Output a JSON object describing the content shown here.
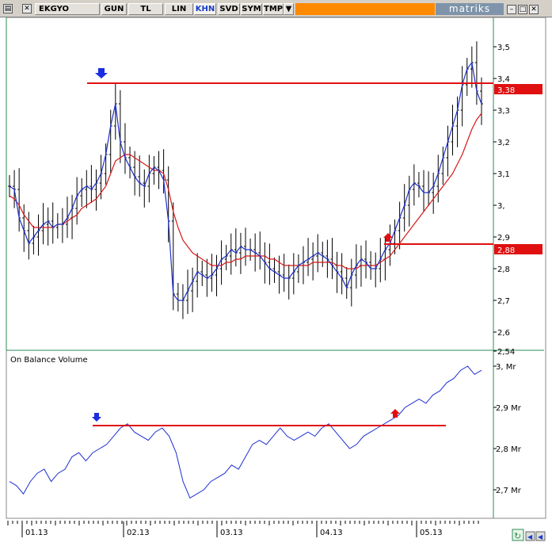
{
  "toolbar": {
    "symbol": "EKGYO",
    "buttons": [
      "GUN",
      "TL",
      "LIN",
      "KHN",
      "SVD",
      "SYM",
      "TMP"
    ],
    "active": "KHN",
    "logo": "matriks"
  },
  "colors": {
    "accent_orange": "#ff8a00",
    "resistance_line": "#e01010",
    "ma_fast": "#1c2fd0",
    "ma_slow": "#d81818",
    "grid": "#2e8b57"
  },
  "price_panel": {
    "y_ticks": [
      "3,5",
      "3,4",
      "3,3",
      "3,2",
      "3,1",
      "3,",
      "2,9",
      "2,8",
      "2,7",
      "2,6",
      "2,54"
    ],
    "level_high_label": "3,38",
    "level_low_label": "2,88"
  },
  "obv_panel": {
    "title": "On Balance Volume",
    "y_ticks": [
      "3, Mr",
      "2,9 Mr",
      "2,8 Mr",
      "2,7 Mr"
    ]
  },
  "x_axis": {
    "labels": [
      "01.13",
      "02.13",
      "03.13",
      "04.13",
      "05.13"
    ]
  },
  "chart_data": [
    {
      "type": "line",
      "title": "",
      "series_name": "EKGYO",
      "ylim": [
        2.54,
        3.58
      ],
      "support_resistance": [
        3.38,
        2.88
      ],
      "markers": [
        {
          "type": "down-arrow",
          "x_index": 28,
          "color": "blue"
        },
        {
          "type": "up-arrow",
          "x_index": 120,
          "color": "red"
        }
      ],
      "series": [
        {
          "name": "",
          "values": [
            3.06,
            3.05,
            2.96,
            2.92,
            2.88,
            2.9,
            2.92,
            2.94,
            2.95,
            2.93,
            2.94,
            2.94,
            2.96,
            2.99,
            3.03,
            3.05,
            3.06,
            3.05,
            3.07,
            3.1,
            3.16,
            3.25,
            3.32,
            3.2,
            3.15,
            3.12,
            3.09,
            3.07,
            3.06,
            3.1,
            3.12,
            3.11,
            3.08,
            2.95,
            2.72,
            2.7,
            2.7,
            2.73,
            2.76,
            2.79,
            2.78,
            2.77,
            2.78,
            2.8,
            2.83,
            2.84,
            2.86,
            2.85,
            2.87,
            2.86,
            2.86,
            2.85,
            2.84,
            2.82,
            2.8,
            2.79,
            2.78,
            2.77,
            2.77,
            2.79,
            2.81,
            2.82,
            2.83,
            2.84,
            2.85,
            2.84,
            2.83,
            2.81,
            2.79,
            2.77,
            2.74,
            2.78,
            2.81,
            2.83,
            2.82,
            2.8,
            2.8,
            2.83,
            2.86,
            2.88,
            2.92,
            2.96,
            3.0,
            3.05,
            3.07,
            3.06,
            3.04,
            3.04,
            3.06,
            3.1,
            3.15,
            3.2,
            3.25,
            3.3,
            3.38,
            3.43,
            3.45,
            3.36,
            3.32
          ]
        },
        {
          "name": "",
          "values": [
            3.03,
            3.02,
            3.0,
            2.97,
            2.95,
            2.93,
            2.93,
            2.93,
            2.93,
            2.93,
            2.94,
            2.94,
            2.95,
            2.96,
            2.97,
            2.99,
            3.0,
            3.01,
            3.02,
            3.04,
            3.06,
            3.1,
            3.14,
            3.15,
            3.16,
            3.16,
            3.15,
            3.14,
            3.13,
            3.12,
            3.11,
            3.11,
            3.1,
            3.05,
            2.98,
            2.93,
            2.89,
            2.87,
            2.85,
            2.84,
            2.83,
            2.82,
            2.81,
            2.81,
            2.81,
            2.82,
            2.82,
            2.83,
            2.83,
            2.84,
            2.84,
            2.84,
            2.84,
            2.84,
            2.83,
            2.83,
            2.82,
            2.81,
            2.81,
            2.81,
            2.81,
            2.81,
            2.81,
            2.82,
            2.82,
            2.82,
            2.82,
            2.82,
            2.81,
            2.81,
            2.8,
            2.8,
            2.8,
            2.81,
            2.81,
            2.81,
            2.81,
            2.82,
            2.83,
            2.84,
            2.86,
            2.88,
            2.9,
            2.92,
            2.94,
            2.96,
            2.98,
            3.0,
            3.02,
            3.04,
            3.06,
            3.08,
            3.1,
            3.13,
            3.16,
            3.2,
            3.24,
            3.27,
            3.29
          ]
        }
      ]
    },
    {
      "type": "line",
      "title": "On Balance Volume",
      "ylim": [
        2.66,
        3.0
      ],
      "level": 2.855,
      "series": [
        {
          "name": "",
          "values": [
            2.72,
            2.71,
            2.69,
            2.72,
            2.74,
            2.75,
            2.72,
            2.74,
            2.75,
            2.78,
            2.79,
            2.77,
            2.79,
            2.8,
            2.81,
            2.83,
            2.85,
            2.86,
            2.84,
            2.83,
            2.82,
            2.84,
            2.85,
            2.83,
            2.79,
            2.72,
            2.68,
            2.69,
            2.7,
            2.72,
            2.73,
            2.74,
            2.76,
            2.75,
            2.78,
            2.81,
            2.82,
            2.81,
            2.83,
            2.85,
            2.83,
            2.82,
            2.83,
            2.84,
            2.83,
            2.85,
            2.86,
            2.84,
            2.82,
            2.8,
            2.81,
            2.83,
            2.84,
            2.85,
            2.86,
            2.87,
            2.88,
            2.9,
            2.91,
            2.92,
            2.91,
            2.93,
            2.94,
            2.96,
            2.97,
            2.99,
            3.0,
            2.98,
            2.99
          ]
        }
      ]
    }
  ]
}
